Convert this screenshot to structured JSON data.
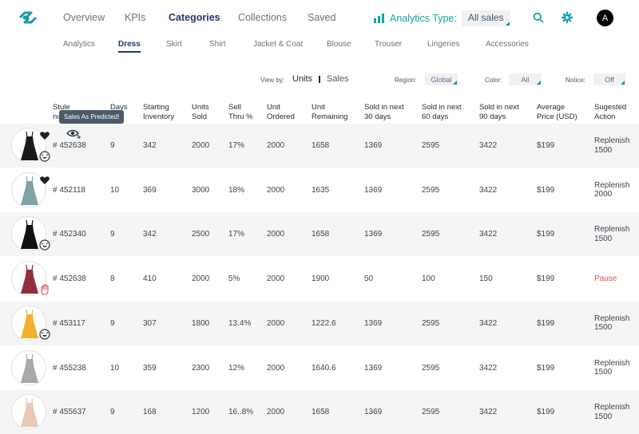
{
  "nav": {
    "items": [
      {
        "label": "Overview",
        "active": false
      },
      {
        "label": "KPIs",
        "active": false
      },
      {
        "label": "Categories",
        "active": true
      },
      {
        "label": "Collections",
        "active": false
      },
      {
        "label": "Saved",
        "active": false
      }
    ],
    "analytics_type_label": "Analytics Type:",
    "analytics_type_value": "All sales",
    "avatar_letter": "A",
    "accent_color": "#15a3a3"
  },
  "subnav": {
    "items": [
      {
        "label": "Analytics",
        "active": false
      },
      {
        "label": "Dress",
        "active": true
      },
      {
        "label": "Skirt",
        "active": false
      },
      {
        "label": "Shirt",
        "active": false
      },
      {
        "label": "Jacket & Coat",
        "active": false
      },
      {
        "label": "Blouse",
        "active": false
      },
      {
        "label": "Trouser",
        "active": false
      },
      {
        "label": "Lingeries",
        "active": false
      },
      {
        "label": "Accessories",
        "active": false
      }
    ]
  },
  "filters": {
    "view_by_label": "View by:",
    "view_units": "Units",
    "view_sales": "Sales",
    "view_active": "Units",
    "region_label": "Region:",
    "region_value": "Global",
    "color_label": "Color:",
    "color_value": "All",
    "notice_label": "Notice:",
    "notice_value": "Off"
  },
  "table": {
    "headers": [
      [
        "Stule",
        "nu"
      ],
      [
        "Days"
      ],
      [
        "Starting",
        "Inventory"
      ],
      [
        "Units",
        "Sold"
      ],
      [
        "Sell",
        "Thru %"
      ],
      [
        "Unit",
        "Ordered"
      ],
      [
        "Unit",
        "Remaining"
      ],
      [
        "Sold in next",
        "30 days"
      ],
      [
        "Sold in next",
        "60 days"
      ],
      [
        "Sold in next",
        "90 days"
      ],
      [
        "Average",
        "Price (USD)"
      ],
      [
        "Sugested",
        "Action"
      ]
    ],
    "tooltip": "Sales As Predicted!",
    "rows": [
      {
        "style": "# 452638",
        "days": "9",
        "starting": "342",
        "units_sold": "2000",
        "sell_thru": "17%",
        "ordered": "2000",
        "remaining": "1658",
        "d30": "1369",
        "d60": "2595",
        "d90": "3422",
        "price": "$199",
        "action": [
          "Replenish",
          "1500"
        ],
        "pause": false,
        "dress_color": "#1a1a1a",
        "favorite": true,
        "status": "smile"
      },
      {
        "style": "# 452118",
        "days": "10",
        "starting": "369",
        "units_sold": "3000",
        "sell_thru": "18%",
        "ordered": "2000",
        "remaining": "1635",
        "d30": "1369",
        "d60": "2595",
        "d90": "3422",
        "price": "$199",
        "action": [
          "Replenish",
          "2000"
        ],
        "pause": false,
        "dress_color": "#7fa3a6",
        "favorite": true,
        "status": "none"
      },
      {
        "style": "# 452340",
        "days": "9",
        "starting": "342",
        "units_sold": "2500",
        "sell_thru": "17%",
        "ordered": "2000",
        "remaining": "1658",
        "d30": "1369",
        "d60": "2595",
        "d90": "3422",
        "price": "$199",
        "action": [
          "Replenish",
          "1500"
        ],
        "pause": false,
        "dress_color": "#111111",
        "favorite": false,
        "status": "smile"
      },
      {
        "style": "# 452638",
        "days": "8",
        "starting": "410",
        "units_sold": "2000",
        "sell_thru": "5%",
        "ordered": "2000",
        "remaining": "1900",
        "d30": "50",
        "d60": "100",
        "d90": "150",
        "price": "$199",
        "action": [
          "Pause"
        ],
        "pause": true,
        "dress_color": "#8e2f3a",
        "favorite": false,
        "status": "hand"
      },
      {
        "style": "# 453117",
        "days": "9",
        "starting": "307",
        "units_sold": "1800",
        "sell_thru": "13.4%",
        "ordered": "2000",
        "remaining": "1222.6",
        "d30": "1369",
        "d60": "2595",
        "d90": "3422",
        "price": "$199",
        "action": [
          "Replenish",
          "1500"
        ],
        "pause": false,
        "dress_color": "#f2b32c",
        "favorite": false,
        "status": "smile"
      },
      {
        "style": "# 455238",
        "days": "10",
        "starting": "359",
        "units_sold": "2300",
        "sell_thru": "12%",
        "ordered": "2000",
        "remaining": "1640.6",
        "d30": "1369",
        "d60": "2595",
        "d90": "3422",
        "price": "$199",
        "action": [
          "Replenish",
          "1500"
        ],
        "pause": false,
        "dress_color": "#a9a9ab",
        "favorite": false,
        "status": "none"
      },
      {
        "style": "# 455637",
        "days": "9",
        "starting": "168",
        "units_sold": "1200",
        "sell_thru": "16..8%",
        "ordered": "2000",
        "remaining": "1658",
        "d30": "1369",
        "d60": "2595",
        "d90": "3422",
        "price": "$199",
        "action": [
          "Replenish",
          "1500"
        ],
        "pause": false,
        "dress_color": "#e7c9b4",
        "favorite": false,
        "status": "none"
      }
    ]
  }
}
